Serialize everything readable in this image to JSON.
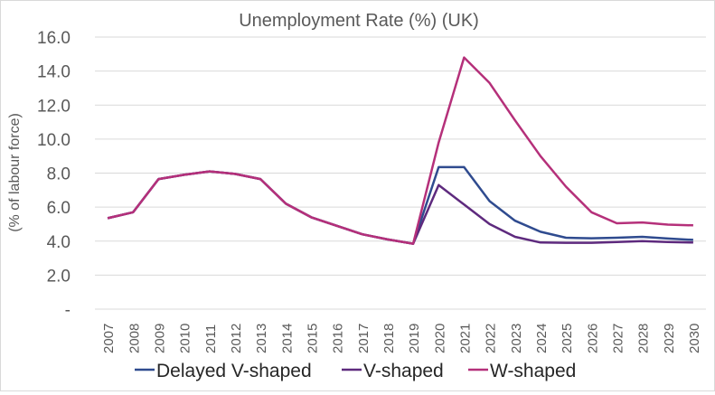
{
  "chart_data": {
    "type": "line",
    "title": "Unemployment Rate (%) (UK)",
    "xlabel": "",
    "ylabel": "(% of labour force)",
    "ylim": [
      0,
      16
    ],
    "yticks": [
      0,
      2,
      4,
      6,
      8,
      10,
      12,
      14,
      16
    ],
    "ytick_labels": [
      "-",
      "2.0",
      "4.0",
      "6.0",
      "8.0",
      "10.0",
      "12.0",
      "14.0",
      "16.0"
    ],
    "grid": true,
    "legend_position": "bottom",
    "categories": [
      "2007",
      "2008",
      "2009",
      "2010",
      "2011",
      "2012",
      "2013",
      "2014",
      "2015",
      "2016",
      "2017",
      "2018",
      "2019",
      "2020",
      "2021",
      "2022",
      "2023",
      "2024",
      "2025",
      "2026",
      "2027",
      "2028",
      "2029",
      "2030"
    ],
    "series": [
      {
        "name": "Delayed V-shaped",
        "color": "#2f4b8f",
        "values": [
          5.35,
          5.7,
          7.65,
          7.9,
          8.1,
          7.95,
          7.65,
          6.2,
          5.4,
          4.9,
          4.4,
          4.1,
          3.85,
          8.35,
          8.35,
          6.35,
          5.2,
          4.55,
          4.2,
          4.17,
          4.2,
          4.25,
          4.15,
          4.07
        ]
      },
      {
        "name": "V-shaped",
        "color": "#5e2a7e",
        "values": [
          5.35,
          5.7,
          7.65,
          7.9,
          8.1,
          7.95,
          7.65,
          6.2,
          5.4,
          4.9,
          4.4,
          4.1,
          3.85,
          7.3,
          6.15,
          5.0,
          4.25,
          3.92,
          3.9,
          3.9,
          3.95,
          4.0,
          3.95,
          3.92
        ]
      },
      {
        "name": "W-shaped",
        "color": "#b5307a",
        "values": [
          5.35,
          5.7,
          7.65,
          7.9,
          8.1,
          7.95,
          7.65,
          6.2,
          5.4,
          4.9,
          4.4,
          4.1,
          3.85,
          9.8,
          14.8,
          13.3,
          11.1,
          9.0,
          7.2,
          5.7,
          5.05,
          5.1,
          4.97,
          4.93
        ]
      }
    ]
  }
}
